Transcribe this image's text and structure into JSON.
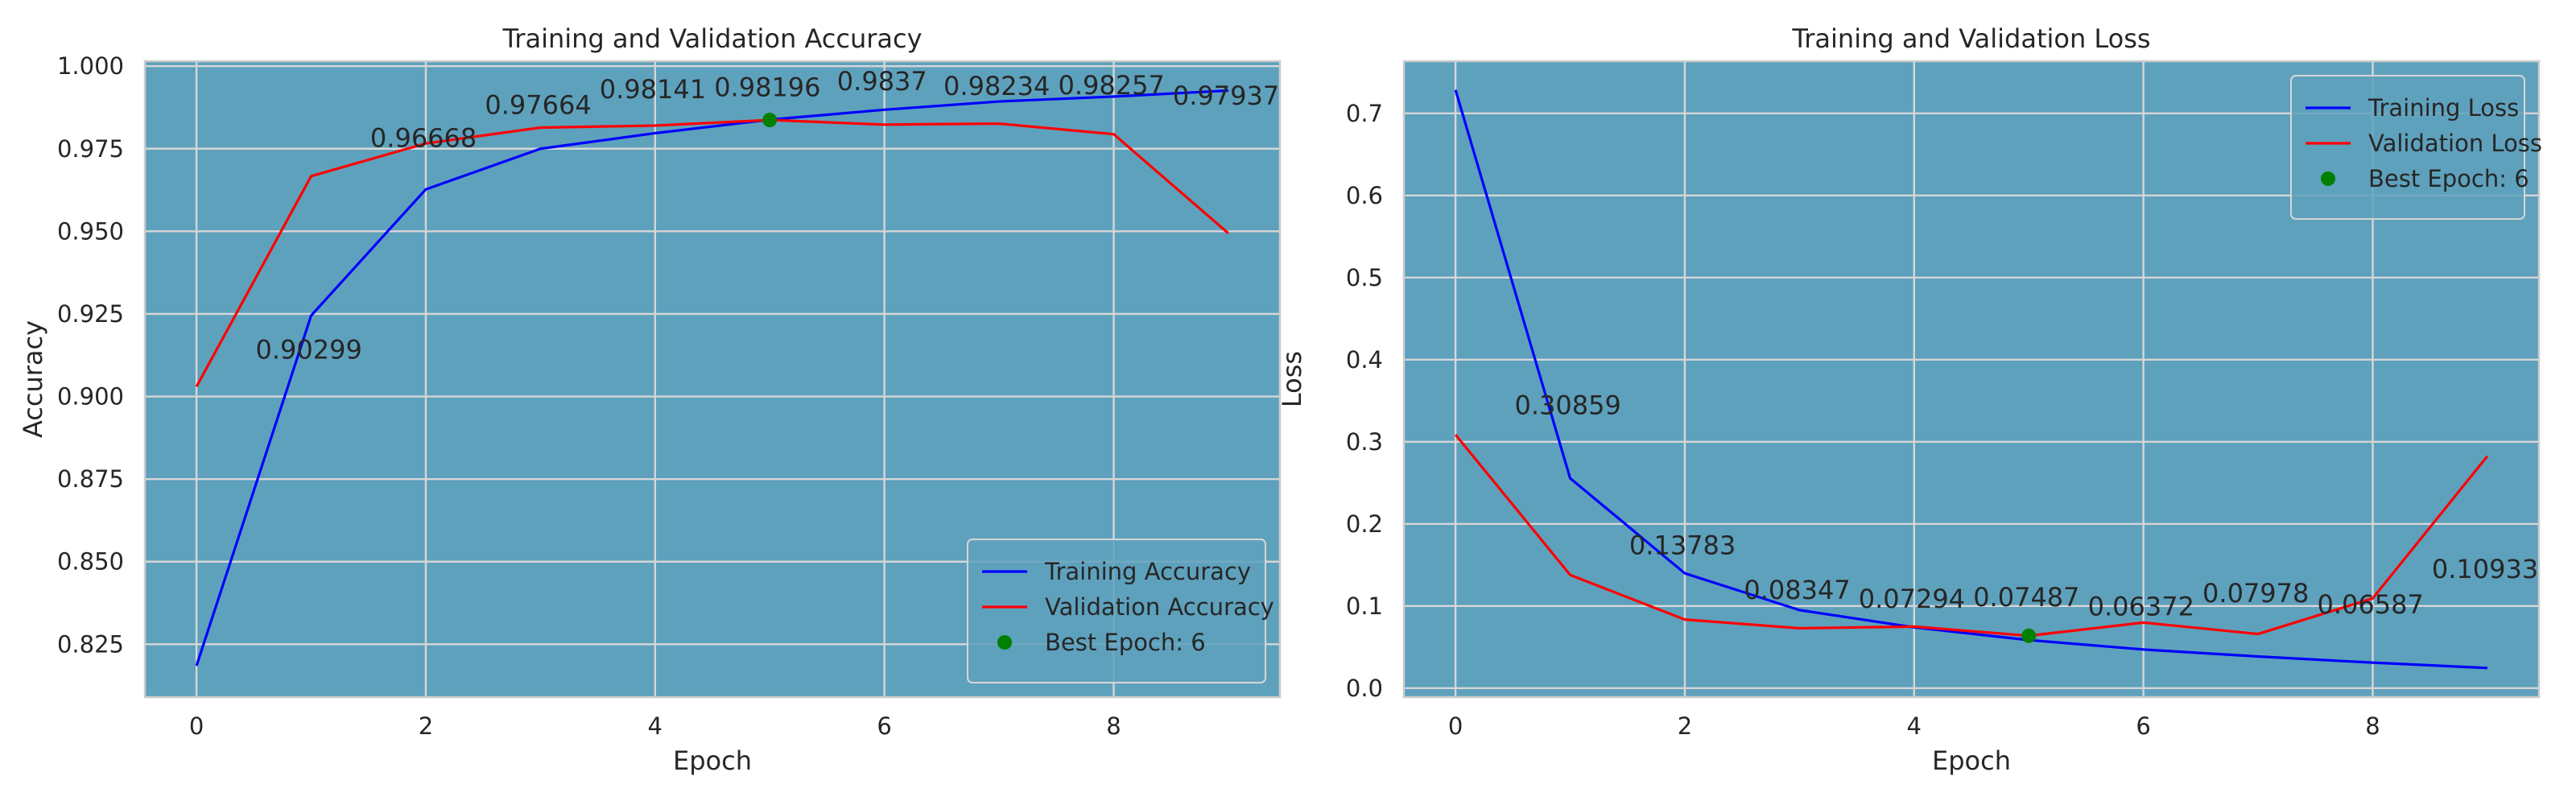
{
  "chart_data": [
    {
      "type": "line",
      "title": "Training and Validation Accuracy",
      "xlabel": "Epoch",
      "ylabel": "Accuracy",
      "xlim": [
        -0.45,
        9.45
      ],
      "ylim": [
        0.809,
        1.0015
      ],
      "xticks": [
        0,
        2,
        4,
        6,
        8
      ],
      "xtick_labels": [
        "0",
        "2",
        "4",
        "6",
        "8"
      ],
      "yticks": [
        0.825,
        0.85,
        0.875,
        0.9,
        0.925,
        0.95,
        0.975,
        1.0
      ],
      "ytick_labels": [
        "0.825",
        "0.850",
        "0.875",
        "0.900",
        "0.925",
        "0.950",
        "0.975",
        "1.000"
      ],
      "grid": true,
      "legend_position": "lower-right",
      "x": [
        0,
        1,
        2,
        3,
        4,
        5,
        6,
        7,
        8,
        9
      ],
      "series": [
        {
          "name": "Training Accuracy",
          "color": "#0000ff",
          "values": [
            0.8185,
            0.9245,
            0.9627,
            0.975,
            0.9797,
            0.9838,
            0.9868,
            0.9893,
            0.9908,
            0.9926
          ]
        },
        {
          "name": "Validation Accuracy",
          "color": "#ff0000",
          "values": [
            0.903,
            0.9667,
            0.9766,
            0.9814,
            0.982,
            0.9837,
            0.9823,
            0.9826,
            0.9794,
            0.9494
          ]
        }
      ],
      "best_point": {
        "label": "Best Epoch: 6",
        "x": 5,
        "y": 0.9837,
        "color": "#008000"
      },
      "annotations": [
        {
          "text": "0.90299",
          "x": 0.98,
          "y": 0.9115
        },
        {
          "text": "0.96668",
          "x": 1.98,
          "y": 0.9755
        },
        {
          "text": "0.97664",
          "x": 2.98,
          "y": 0.9855
        },
        {
          "text": "0.98141",
          "x": 3.98,
          "y": 0.9903
        },
        {
          "text": "0.98196",
          "x": 4.98,
          "y": 0.9909
        },
        {
          "text": "0.9837",
          "x": 5.98,
          "y": 0.9927
        },
        {
          "text": "0.98234",
          "x": 6.98,
          "y": 0.9913
        },
        {
          "text": "0.98257",
          "x": 7.98,
          "y": 0.9915
        },
        {
          "text": "0.97937",
          "x": 8.98,
          "y": 0.9883
        }
      ]
    },
    {
      "type": "line",
      "title": "Training and Validation Loss",
      "xlabel": "Epoch",
      "ylabel": "Loss",
      "xlim": [
        -0.45,
        9.45
      ],
      "ylim": [
        -0.011,
        0.7635
      ],
      "xticks": [
        0,
        2,
        4,
        6,
        8
      ],
      "xtick_labels": [
        "0",
        "2",
        "4",
        "6",
        "8"
      ],
      "yticks": [
        0,
        0.1,
        0.2,
        0.3,
        0.4,
        0.5,
        0.6,
        0.7
      ],
      "ytick_labels": [
        "0.0",
        "0.1",
        "0.2",
        "0.3",
        "0.4",
        "0.5",
        "0.6",
        "0.7"
      ],
      "grid": true,
      "legend_position": "top-right",
      "x": [
        0,
        1,
        2,
        3,
        4,
        5,
        6,
        7,
        8,
        9
      ],
      "series": [
        {
          "name": "Training Loss",
          "color": "#0000ff",
          "values": [
            0.7285,
            0.2555,
            0.1398,
            0.095,
            0.074,
            0.0585,
            0.047,
            0.0385,
            0.031,
            0.0245
          ]
        },
        {
          "name": "Validation Loss",
          "color": "#ff0000",
          "values": [
            0.3086,
            0.1378,
            0.0835,
            0.0729,
            0.0749,
            0.0637,
            0.0798,
            0.0659,
            0.1093,
            0.2825
          ]
        }
      ],
      "best_point": {
        "label": "Best Epoch: 6",
        "x": 5,
        "y": 0.0637,
        "color": "#008000"
      },
      "annotations": [
        {
          "text": "0.30859",
          "x": 0.98,
          "y": 0.3336
        },
        {
          "text": "0.13783",
          "x": 1.98,
          "y": 0.1628
        },
        {
          "text": "0.08347",
          "x": 2.98,
          "y": 0.1085
        },
        {
          "text": "0.07294",
          "x": 3.98,
          "y": 0.0979
        },
        {
          "text": "0.07487",
          "x": 4.98,
          "y": 0.0999
        },
        {
          "text": "0.06372",
          "x": 5.98,
          "y": 0.0887
        },
        {
          "text": "0.07978",
          "x": 6.98,
          "y": 0.1048
        },
        {
          "text": "0.06587",
          "x": 7.98,
          "y": 0.0909
        },
        {
          "text": "0.10933",
          "x": 8.98,
          "y": 0.1343
        }
      ]
    }
  ]
}
